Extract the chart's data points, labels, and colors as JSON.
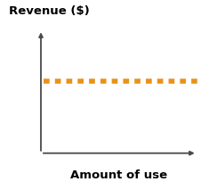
{
  "title": "",
  "ylabel": "Revenue ($)",
  "xlabel": "Amount of use",
  "line_y": 0.58,
  "line_color": "#E8921A",
  "line_width": 4.0,
  "background_color": "#ffffff",
  "ylabel_fontsize": 9.5,
  "xlabel_fontsize": 9.5,
  "ylabel_fontweight": "bold",
  "xlabel_fontweight": "bold",
  "xlim": [
    0,
    1
  ],
  "ylim": [
    0,
    1
  ],
  "axis_color": "#4a4a4a",
  "axis_lw": 1.3,
  "arrow_mutation_scale": 7,
  "x_axis_start": 0.13,
  "x_axis_end": 0.97,
  "y_axis_bottom": 0.06,
  "y_axis_top": 0.95,
  "line_x_start": 0.145,
  "line_x_end": 0.975
}
